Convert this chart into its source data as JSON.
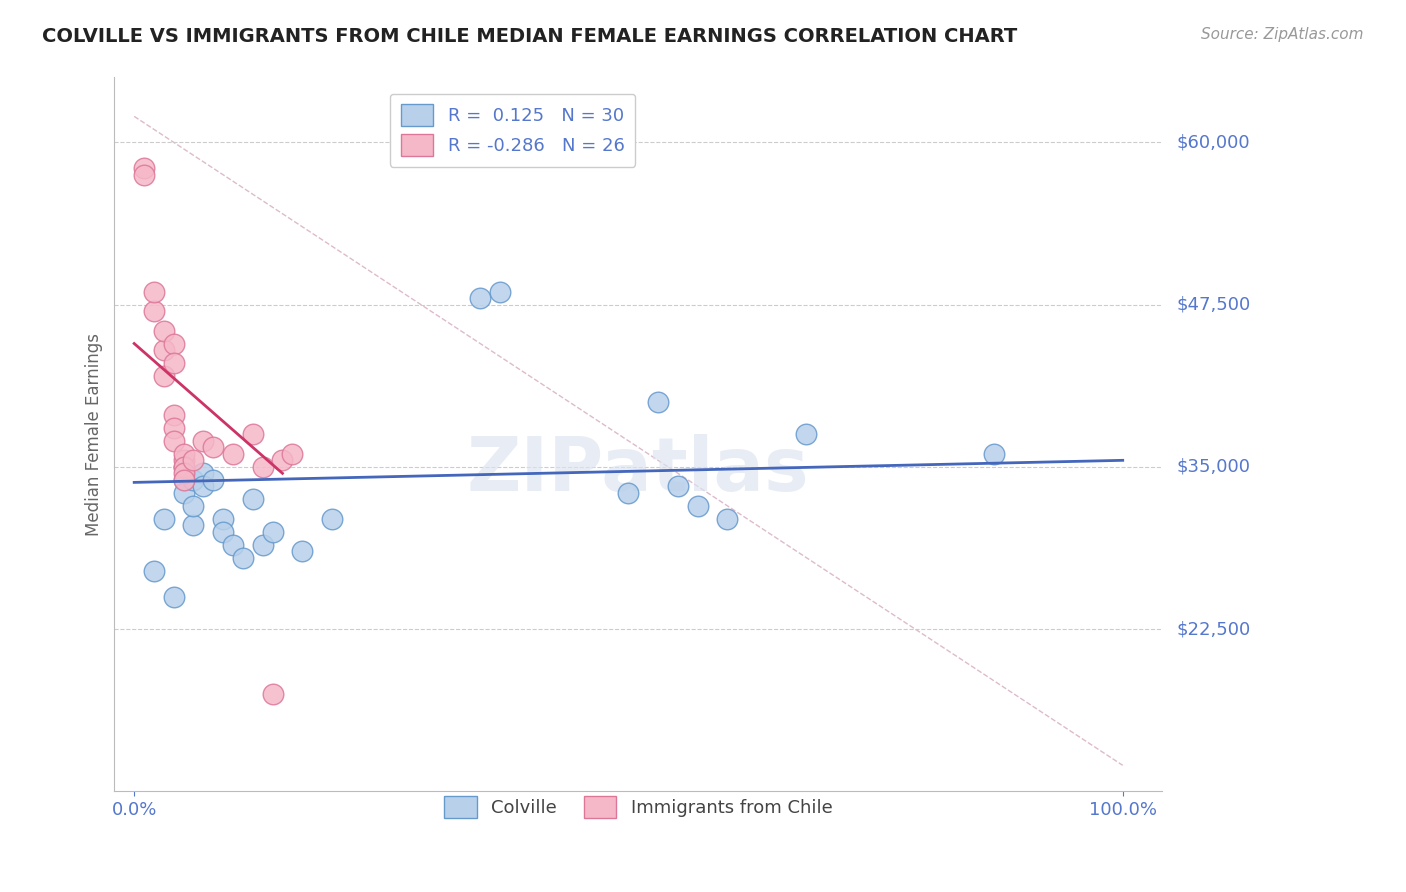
{
  "title": "COLVILLE VS IMMIGRANTS FROM CHILE MEDIAN FEMALE EARNINGS CORRELATION CHART",
  "source": "Source: ZipAtlas.com",
  "xlabel": "",
  "ylabel": "Median Female Earnings",
  "watermark": "ZIPatlas",
  "background_color": "#ffffff",
  "plot_bg_color": "#ffffff",
  "grid_color": "#cccccc",
  "ylabel_color": "#666666",
  "title_color": "#222222",
  "axis_label_color": "#5577cc",
  "ytick_labels": [
    "$22,500",
    "$35,000",
    "$47,500",
    "$60,000"
  ],
  "ytick_values": [
    22500,
    35000,
    47500,
    60000
  ],
  "ymin": 10000,
  "ymax": 65000,
  "xmin": -0.02,
  "xmax": 1.04,
  "xtick_labels": [
    "0.0%",
    "100.0%"
  ],
  "xtick_values": [
    0.0,
    1.0
  ],
  "colville_points": [
    [
      0.02,
      27000
    ],
    [
      0.03,
      31000
    ],
    [
      0.04,
      25000
    ],
    [
      0.05,
      34000
    ],
    [
      0.05,
      33000
    ],
    [
      0.05,
      35000
    ],
    [
      0.06,
      34000
    ],
    [
      0.06,
      30500
    ],
    [
      0.06,
      32000
    ],
    [
      0.07,
      34500
    ],
    [
      0.07,
      33500
    ],
    [
      0.08,
      34000
    ],
    [
      0.09,
      31000
    ],
    [
      0.09,
      30000
    ],
    [
      0.1,
      29000
    ],
    [
      0.11,
      28000
    ],
    [
      0.12,
      32500
    ],
    [
      0.13,
      29000
    ],
    [
      0.14,
      30000
    ],
    [
      0.17,
      28500
    ],
    [
      0.2,
      31000
    ],
    [
      0.35,
      48000
    ],
    [
      0.37,
      48500
    ],
    [
      0.5,
      33000
    ],
    [
      0.53,
      40000
    ],
    [
      0.55,
      33500
    ],
    [
      0.57,
      32000
    ],
    [
      0.6,
      31000
    ],
    [
      0.68,
      37500
    ],
    [
      0.87,
      36000
    ]
  ],
  "colville_color": "#b8d0ea",
  "colville_edge": "#6699cc",
  "colville_trend_x": [
    0.0,
    1.0
  ],
  "colville_trend_y": [
    33800,
    35500
  ],
  "colville_trend_color": "#4466bb",
  "chile_points": [
    [
      0.01,
      58000
    ],
    [
      0.01,
      57500
    ],
    [
      0.02,
      47000
    ],
    [
      0.02,
      48500
    ],
    [
      0.03,
      44000
    ],
    [
      0.03,
      45500
    ],
    [
      0.03,
      42000
    ],
    [
      0.04,
      44500
    ],
    [
      0.04,
      43000
    ],
    [
      0.04,
      39000
    ],
    [
      0.04,
      38000
    ],
    [
      0.04,
      37000
    ],
    [
      0.05,
      35500
    ],
    [
      0.05,
      36000
    ],
    [
      0.05,
      35000
    ],
    [
      0.05,
      34500
    ],
    [
      0.05,
      34000
    ],
    [
      0.06,
      35500
    ],
    [
      0.07,
      37000
    ],
    [
      0.08,
      36500
    ],
    [
      0.1,
      36000
    ],
    [
      0.12,
      37500
    ],
    [
      0.13,
      35000
    ],
    [
      0.14,
      17500
    ],
    [
      0.15,
      35500
    ],
    [
      0.16,
      36000
    ]
  ],
  "chile_color": "#f5b8c8",
  "chile_edge": "#dd7799",
  "chile_trend_x": [
    0.0,
    0.15
  ],
  "chile_trend_y": [
    44500,
    34500
  ],
  "chile_trend_color": "#cc3366",
  "diag_line_x": [
    0.0,
    1.0
  ],
  "diag_line_y": [
    62000,
    12000
  ],
  "diag_color": "#ddbbcc",
  "legend_R1": "0.125",
  "legend_N1": "30",
  "legend_R2": "-0.286",
  "legend_N2": "26",
  "legend_color1": "#b8d0ea",
  "legend_color2": "#f5b8c8",
  "legend_edge1": "#6699cc",
  "legend_edge2": "#dd7799"
}
